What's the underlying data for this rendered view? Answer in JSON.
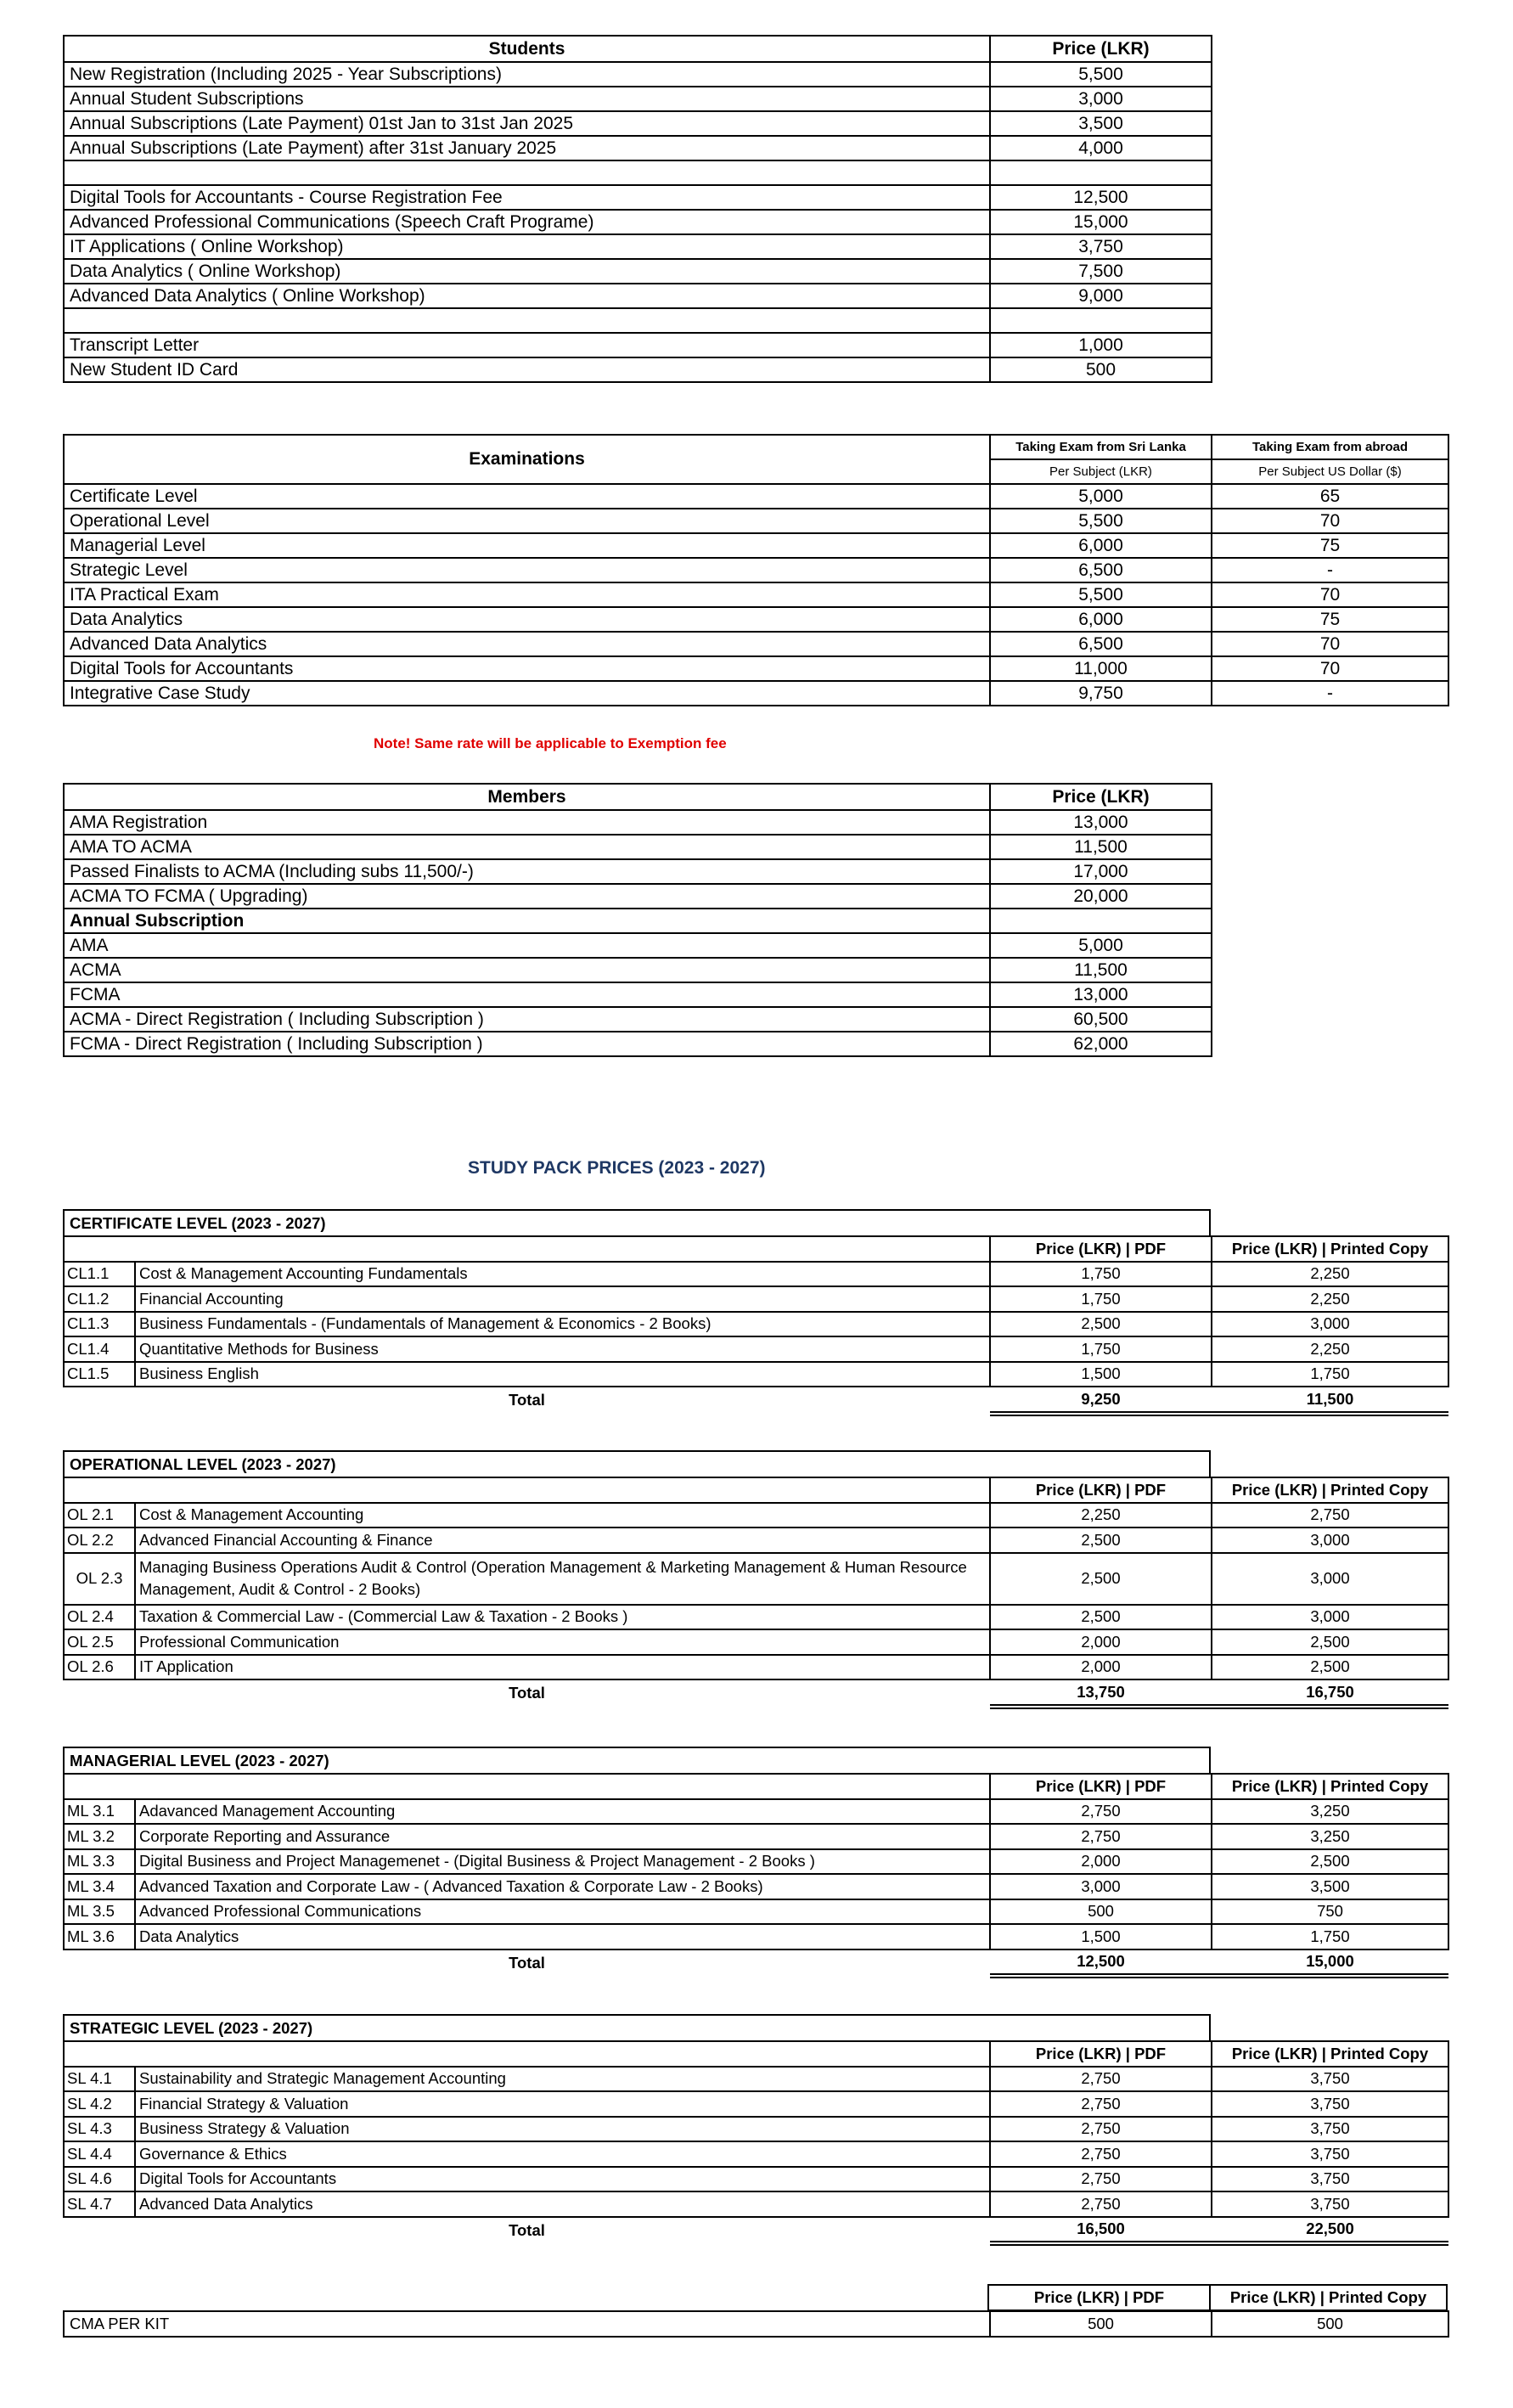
{
  "students": {
    "header": [
      "Students",
      "Price (LKR)"
    ],
    "rows": [
      [
        "New Registration (Including 2025 - Year Subscriptions)",
        "5,500"
      ],
      [
        "Annual Student Subscriptions",
        "3,000"
      ],
      [
        "Annual Subscriptions (Late Payment)  01st Jan to 31st Jan 2025",
        "3,500"
      ],
      [
        "Annual Subscriptions (Late Payment) after 31st January 2025",
        "4,000"
      ],
      [
        "",
        ""
      ],
      [
        "Digital Tools for Accountants - Course Registration Fee",
        "12,500"
      ],
      [
        "Advanced Professional Communications (Speech Craft Programe)",
        "15,000"
      ],
      [
        "IT Applications ( Online Workshop)",
        "3,750"
      ],
      [
        "Data Analytics ( Online Workshop)",
        "7,500"
      ],
      [
        "Advanced Data Analytics ( Online Workshop)",
        "9,000"
      ],
      [
        "",
        ""
      ],
      [
        "Transcript Letter",
        "1,000"
      ],
      [
        "New Student ID Card",
        "500"
      ]
    ]
  },
  "examinations": {
    "title": "Examinations",
    "col_headers": [
      "Taking Exam from Sri Lanka",
      "Taking Exam from abroad"
    ],
    "sub_headers": [
      "Per Subject (LKR)",
      "Per Subject US Dollar ($)"
    ],
    "rows": [
      [
        "Certificate Level",
        "5,000",
        "65"
      ],
      [
        "Operational Level",
        "5,500",
        "70"
      ],
      [
        "Managerial Level",
        "6,000",
        "75"
      ],
      [
        "Strategic Level",
        "6,500",
        "-"
      ],
      [
        "ITA Practical Exam",
        "5,500",
        "70"
      ],
      [
        "Data Analytics",
        "6,000",
        "75"
      ],
      [
        "Advanced Data Analytics",
        "6,500",
        "70"
      ],
      [
        "Digital Tools for Accountants",
        "11,000",
        "70"
      ],
      [
        "Integrative Case Study",
        "9,750",
        "-"
      ]
    ],
    "note": "Note! Same rate will be applicable to Exemption fee",
    "note_color": "#e00000"
  },
  "members": {
    "header": [
      "Members",
      "Price (LKR)"
    ],
    "rows": [
      [
        "AMA Registration",
        "13,000"
      ],
      [
        "AMA TO ACMA",
        "11,500"
      ],
      [
        "Passed Finalists to ACMA (Including subs 11,500/-)",
        "17,000"
      ],
      [
        "ACMA TO FCMA ( Upgrading)",
        "20,000"
      ],
      [
        "Annual Subscription",
        ""
      ],
      [
        "AMA",
        "5,000"
      ],
      [
        "ACMA",
        "11,500"
      ],
      [
        "FCMA",
        "13,000"
      ],
      [
        "ACMA - Direct Registration ( Including Subscription )",
        "60,500"
      ],
      [
        "FCMA - Direct Registration ( Including Subscription )",
        "62,000"
      ]
    ]
  },
  "study_pack": {
    "title": "STUDY PACK PRICES  (2023 - 2027)",
    "title_color": "#1f3864",
    "col_headers": [
      "Price (LKR) | PDF",
      "Price (LKR) | Printed Copy"
    ],
    "total_label": "Total",
    "levels": [
      {
        "title": "CERTIFICATE LEVEL (2023 - 2027)",
        "items": [
          [
            "CL1.1",
            "Cost & Management Accounting Fundamentals",
            "1,750",
            "2,250"
          ],
          [
            "CL1.2",
            "Financial Accounting",
            "1,750",
            "2,250"
          ],
          [
            "CL1.3",
            "Business Fundamentals - (Fundamentals of Management & Economics - 2 Books)",
            "2,500",
            "3,000"
          ],
          [
            "CL1.4",
            "Quantitative Methods for Business",
            "1,750",
            "2,250"
          ],
          [
            "CL1.5",
            "Business English",
            "1,500",
            "1,750"
          ]
        ],
        "total": [
          "9,250",
          "11,500"
        ]
      },
      {
        "title": "OPERATIONAL LEVEL (2023 - 2027)",
        "items": [
          [
            "OL 2.1",
            "Cost & Management Accounting",
            "2,250",
            "2,750"
          ],
          [
            "OL 2.2",
            "Advanced Financial Accounting & Finance",
            "2,500",
            "3,000"
          ],
          [
            "OL 2.3",
            "Managing Business Operations Audit & Control (Operation Management & Marketing Management & Human Resource Management, Audit & Control - 2 Books)",
            "2,500",
            "3,000"
          ],
          [
            "OL 2.4",
            "Taxation & Commercial Law - (Commercial Law & Taxation - 2 Books )",
            "2,500",
            "3,000"
          ],
          [
            "OL 2.5",
            "Professional Communication",
            "2,000",
            "2,500"
          ],
          [
            "OL 2.6",
            "IT Application",
            "2,000",
            "2,500"
          ]
        ],
        "total": [
          "13,750",
          "16,750"
        ]
      },
      {
        "title": "MANAGERIAL LEVEL (2023 - 2027)",
        "items": [
          [
            "ML 3.1",
            "Adavanced Management Accounting",
            "2,750",
            "3,250"
          ],
          [
            "ML 3.2",
            "Corporate Reporting and Assurance",
            "2,750",
            "3,250"
          ],
          [
            "ML 3.3",
            "Digital Business and Project Managemenet - (Digital Business & Project Management - 2 Books )",
            "2,000",
            "2,500"
          ],
          [
            "ML 3.4",
            "Advanced Taxation and Corporate Law - ( Advanced Taxation & Corporate Law - 2 Books)",
            "3,000",
            "3,500"
          ],
          [
            "ML 3.5",
            "Advanced Professional Communications",
            "500",
            "750"
          ],
          [
            "ML 3.6",
            "Data Analytics",
            "1,500",
            "1,750"
          ]
        ],
        "total": [
          "12,500",
          "15,000"
        ]
      },
      {
        "title": "STRATEGIC LEVEL (2023 - 2027)",
        "items": [
          [
            "SL 4.1",
            "Sustainability and Strategic Management Accounting",
            "2,750",
            "3,750"
          ],
          [
            "SL 4.2",
            "Financial Strategy & Valuation",
            "2,750",
            "3,750"
          ],
          [
            "SL 4.3",
            "Business Strategy & Valuation",
            "2,750",
            "3,750"
          ],
          [
            "SL 4.4",
            "Governance & Ethics",
            "2,750",
            "3,750"
          ],
          [
            "SL 4.6",
            "Digital Tools for Accountants",
            "2,750",
            "3,750"
          ],
          [
            "SL 4.7",
            "Advanced Data Analytics",
            "2,750",
            "3,750"
          ]
        ],
        "total": [
          "16,500",
          "22,500"
        ]
      }
    ],
    "cma_kit": [
      "CMA PER KIT",
      "500",
      "500"
    ]
  }
}
